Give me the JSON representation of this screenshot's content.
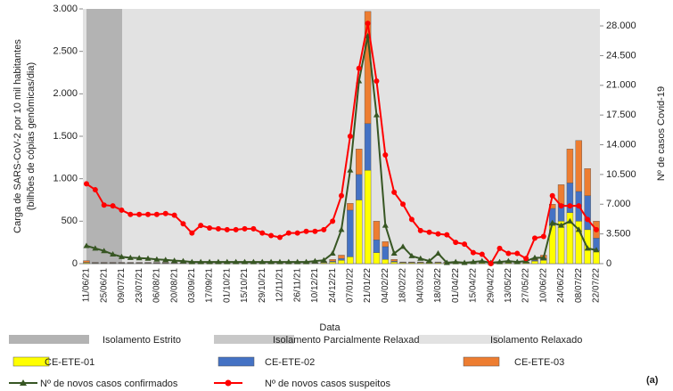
{
  "chart_data": {
    "type": "bar",
    "x_label": "Data",
    "y_label": [
      "Carga de SARS-CoV-2 por 10 mil habitantes",
      "(bilhões de cópias genômicas/dia)"
    ],
    "y2_label": "Nº de casos Covid-19",
    "panel_label": "(a)",
    "categories": [
      "11/06/21",
      null,
      "25/06/21",
      null,
      "09/07/21",
      null,
      "23/07/21",
      null,
      "06/08/21",
      null,
      "20/08/21",
      null,
      "03/09/21",
      null,
      "17/09/21",
      null,
      "01/10/21",
      null,
      "15/10/21",
      null,
      "29/10/21",
      null,
      "12/11/21",
      null,
      "26/11/21",
      null,
      "10/12/21",
      null,
      "24/12/21",
      null,
      "07/01/22",
      null,
      "21/01/22",
      null,
      "04/02/22",
      null,
      "18/02/22",
      null,
      "04/03/22",
      null,
      "18/03/22",
      null,
      "01/04/22",
      null,
      "15/04/22",
      null,
      "29/04/22",
      null,
      "13/05/22",
      null,
      "27/05/22",
      null,
      "10/06/22",
      null,
      "24/06/22",
      null,
      "08/07/22",
      null,
      "22/07/22"
    ],
    "phases": [
      {
        "name": "Isolamento Estrito",
        "color": "#b3b3b3"
      },
      {
        "name": "Isolamento Parcialmente Relaxado",
        "color": "#c8c8c8"
      },
      {
        "name": "Isolamento Relaxado",
        "color": "#e2e2e2"
      }
    ],
    "series": [
      {
        "name": "CE-ETE-01",
        "type": "bar",
        "color": "#ffff00",
        "values": [
          10,
          5,
          5,
          5,
          5,
          5,
          5,
          5,
          5,
          5,
          5,
          5,
          5,
          5,
          5,
          5,
          5,
          5,
          5,
          5,
          5,
          5,
          5,
          5,
          5,
          5,
          5,
          10,
          20,
          40,
          80,
          750,
          1100,
          130,
          50,
          20,
          10,
          10,
          10,
          10,
          10,
          10,
          10,
          10,
          10,
          10,
          10,
          10,
          10,
          10,
          10,
          30,
          40,
          450,
          500,
          600,
          500,
          400,
          150
        ]
      },
      {
        "name": "CE-ETE-02",
        "type": "bar",
        "color": "#4472c4",
        "values": [
          5,
          5,
          5,
          5,
          5,
          5,
          5,
          5,
          5,
          5,
          5,
          5,
          5,
          5,
          5,
          5,
          5,
          5,
          5,
          5,
          5,
          5,
          5,
          5,
          5,
          5,
          5,
          5,
          10,
          20,
          550,
          300,
          550,
          150,
          150,
          10,
          5,
          5,
          5,
          5,
          5,
          5,
          5,
          5,
          5,
          5,
          5,
          5,
          5,
          5,
          5,
          10,
          20,
          200,
          200,
          350,
          350,
          400,
          150
        ]
      },
      {
        "name": "CE-ETE-03",
        "type": "bar",
        "color": "#ed7d31",
        "values": [
          20,
          5,
          5,
          5,
          5,
          5,
          5,
          5,
          5,
          5,
          5,
          5,
          5,
          5,
          5,
          5,
          5,
          5,
          5,
          5,
          5,
          5,
          5,
          5,
          5,
          5,
          5,
          10,
          20,
          40,
          80,
          300,
          1320,
          220,
          60,
          20,
          5,
          5,
          5,
          5,
          5,
          5,
          5,
          5,
          5,
          5,
          5,
          5,
          5,
          5,
          5,
          20,
          40,
          50,
          230,
          400,
          600,
          320,
          200
        ]
      },
      {
        "name": "Nº de novos casos confirmados",
        "type": "line",
        "axis": "y2",
        "color": "#375623",
        "marker": "triangle",
        "values": [
          2100,
          1800,
          1500,
          1100,
          800,
          700,
          650,
          600,
          500,
          450,
          350,
          300,
          200,
          200,
          200,
          200,
          200,
          200,
          200,
          200,
          200,
          200,
          200,
          200,
          200,
          200,
          300,
          400,
          1200,
          4000,
          11000,
          21500,
          26800,
          17500,
          4500,
          1200,
          2000,
          900,
          600,
          300,
          1200,
          100,
          200,
          100,
          200,
          300,
          100,
          200,
          300,
          200,
          300,
          700,
          700,
          4800,
          4500,
          5000,
          4000,
          1800,
          1600
        ]
      },
      {
        "name": "Nº de novos casos suspeitos",
        "type": "line",
        "axis": "y2",
        "color": "#ff0000",
        "marker": "circle",
        "values": [
          9400,
          8700,
          6900,
          6800,
          6300,
          5800,
          5800,
          5800,
          5800,
          5900,
          5700,
          4700,
          3600,
          4500,
          4200,
          4100,
          4000,
          4000,
          4100,
          4100,
          3600,
          3300,
          3100,
          3600,
          3600,
          3800,
          3800,
          4000,
          5000,
          8000,
          15000,
          23000,
          28300,
          21500,
          12800,
          8400,
          7000,
          5200,
          3900,
          3700,
          3500,
          3400,
          2500,
          2300,
          1300,
          1100,
          0,
          1800,
          1200,
          1200,
          600,
          3000,
          3200,
          8000,
          6800,
          6800,
          6800,
          5200,
          4000
        ]
      }
    ],
    "ylim": [
      0,
      3000
    ],
    "yticks": [
      0,
      500,
      {
        "value": 1000,
        "label": "1.000"
      },
      {
        "value": 1500,
        "label": "1.500"
      },
      {
        "value": 2000,
        "label": "2.000"
      },
      {
        "value": 2500,
        "label": "2.500"
      },
      {
        "value": 3000,
        "label": "3.000"
      }
    ],
    "y2lim": [
      0,
      30000
    ],
    "y2ticks": [
      0,
      {
        "value": 3500,
        "label": "3.500"
      },
      {
        "value": 7000,
        "label": "7.000"
      },
      {
        "value": 10500,
        "label": "10.500"
      },
      {
        "value": 14000,
        "label": "14.000"
      },
      {
        "value": 17500,
        "label": "17.500"
      },
      {
        "value": 21000,
        "label": "21.000"
      },
      {
        "value": 24500,
        "label": "24.500"
      },
      {
        "value": 28000,
        "label": "28.000"
      }
    ]
  }
}
